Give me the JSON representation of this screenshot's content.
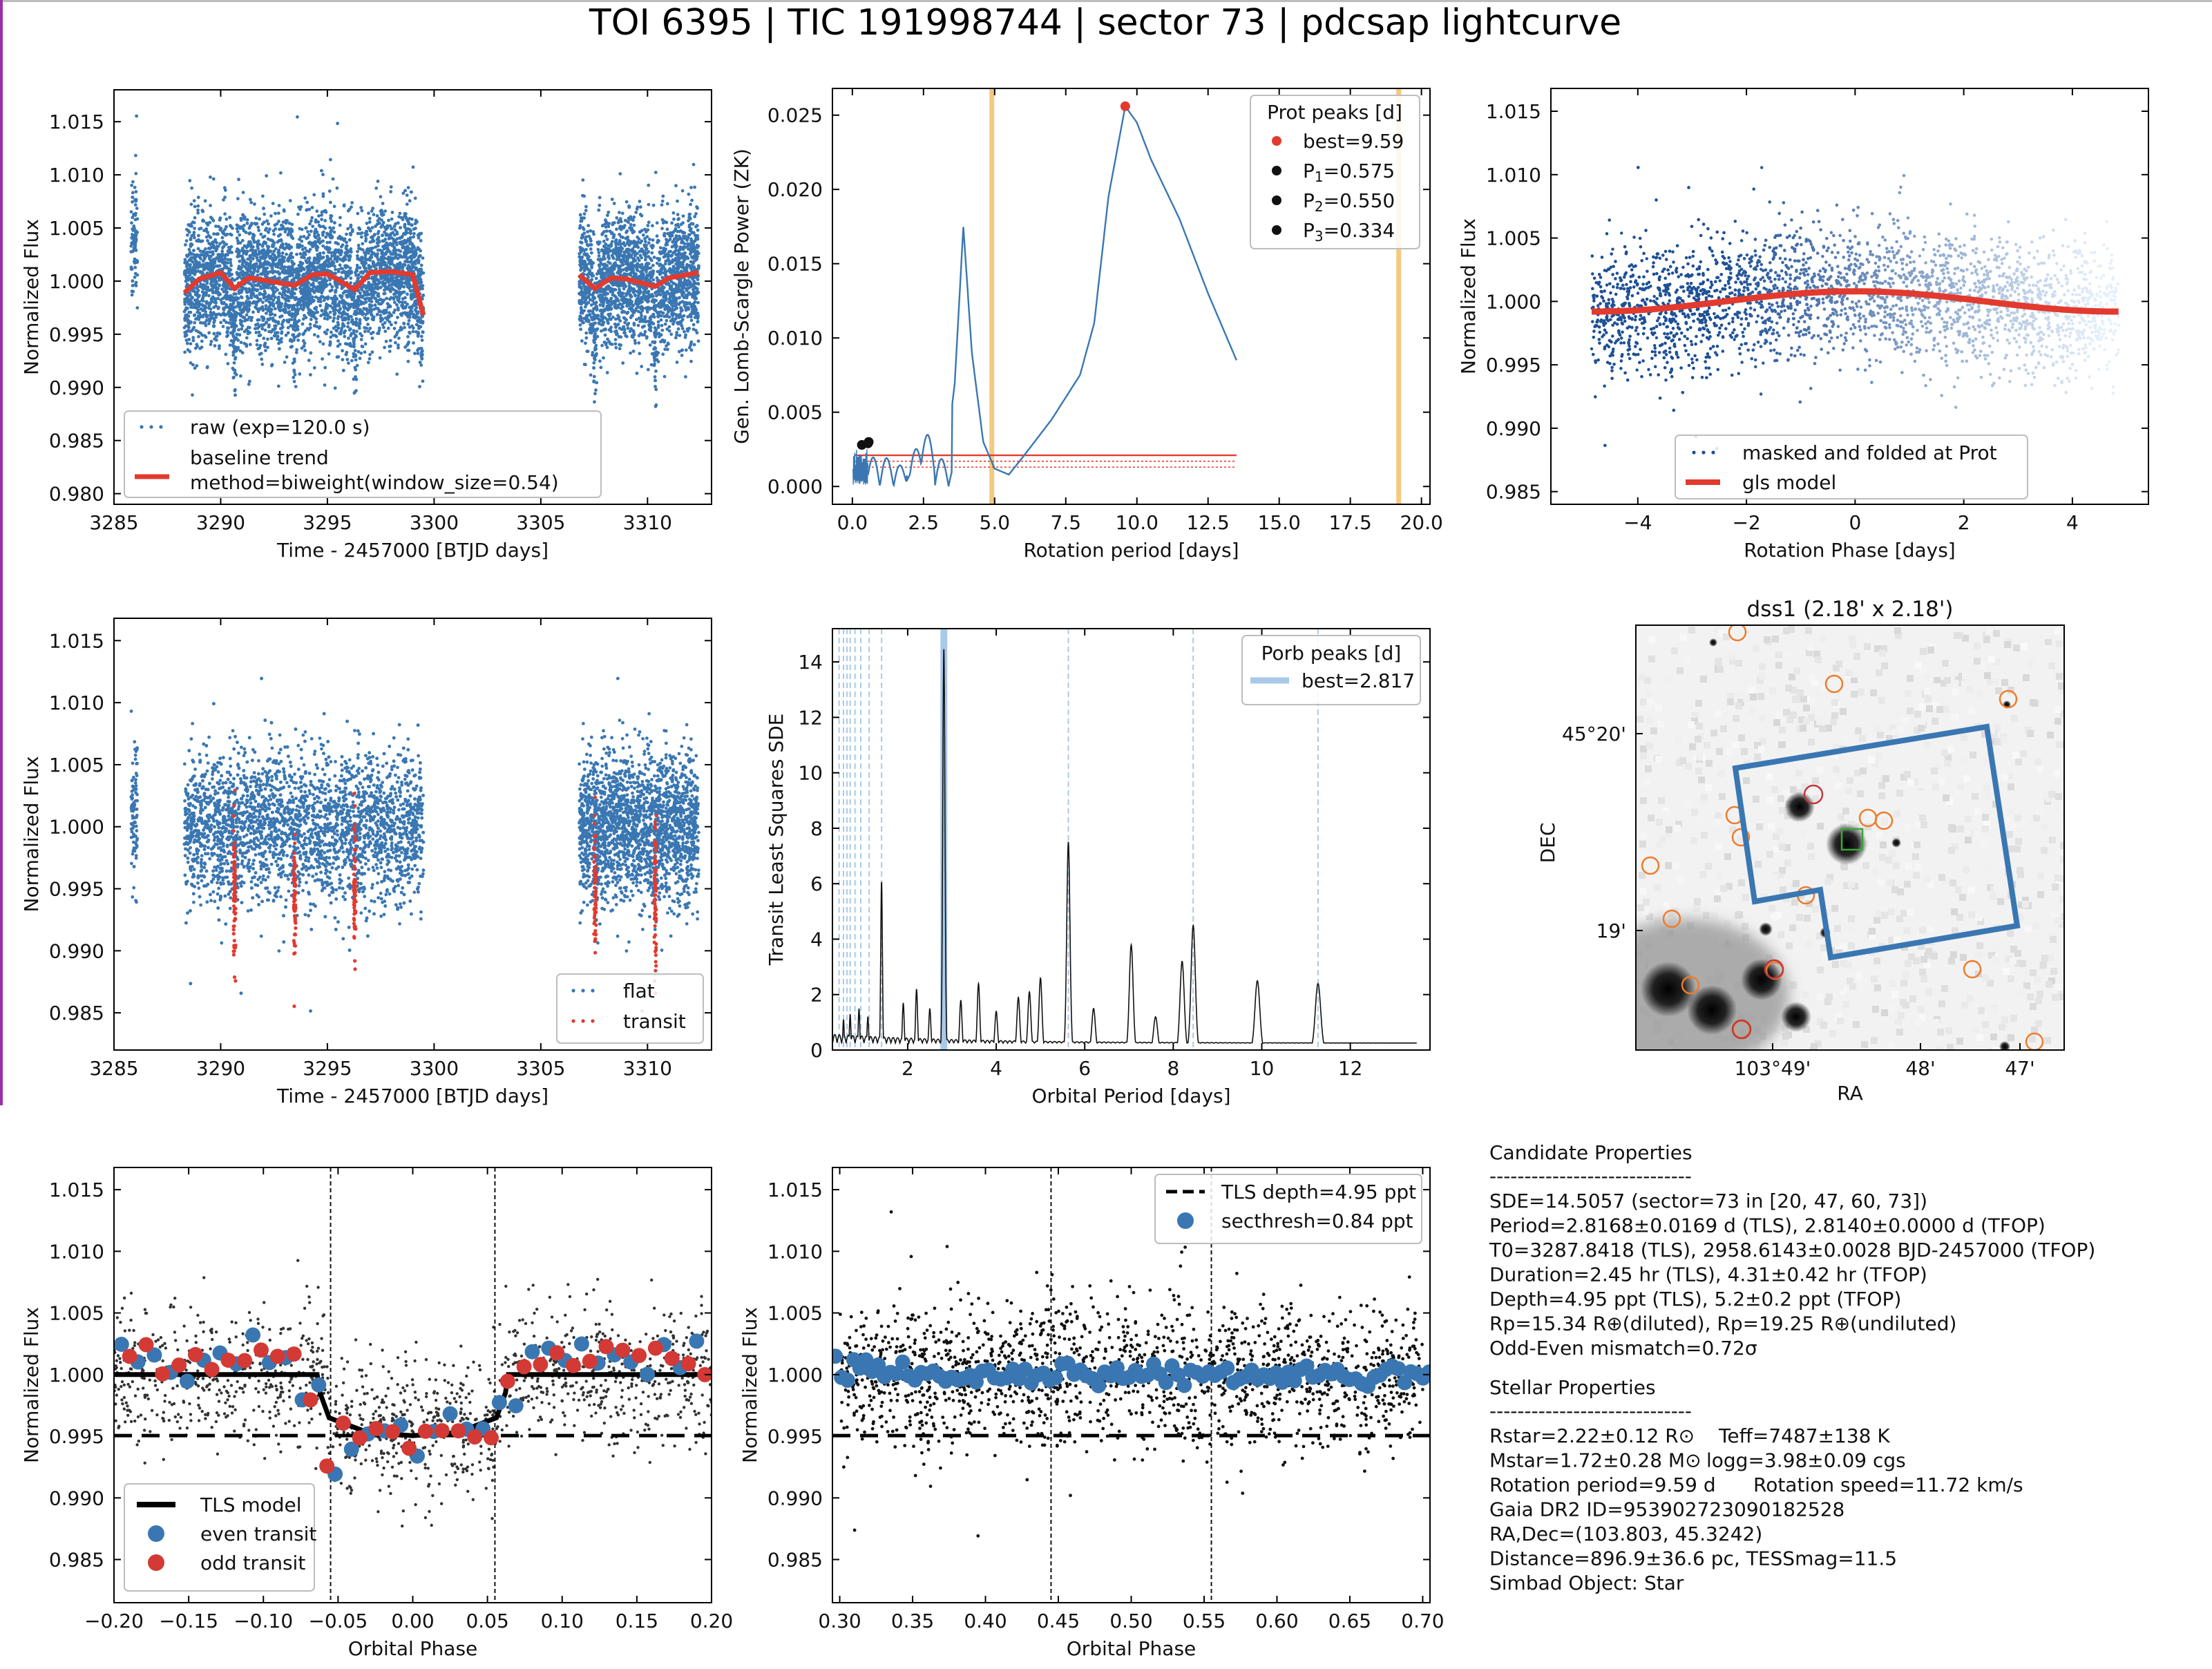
{
  "title": "TOI 6395 | TIC 191998744 | sector 73 | pdcsap lightcurve",
  "colors": {
    "blue": "#3a77b2",
    "red": "#e23a2e",
    "orange": "#f5c97e",
    "lightblue": "#a9c9e8",
    "dark": "#1a1a1a"
  },
  "chart_data": [
    {
      "id": "raw-lc",
      "type": "scatter",
      "xlabel": "Time - 2457000 [BTJD days]",
      "ylabel": "Normalized Flux",
      "xlim": [
        3285,
        3313
      ],
      "ylim": [
        0.979,
        1.018
      ],
      "xticks": [
        3285,
        3290,
        3295,
        3300,
        3305,
        3310
      ],
      "yticks": [
        0.98,
        0.985,
        0.99,
        0.995,
        1.0,
        1.005,
        1.01,
        1.015
      ],
      "segments": [
        [
          3285.8,
          3286.1
        ],
        [
          3288.3,
          3299.5
        ],
        [
          3306.8,
          3312.4
        ]
      ],
      "transit_times": [
        3290.65,
        3293.47,
        3296.28,
        3307.54,
        3310.36
      ],
      "series": [
        {
          "name": "raw (exp=120.0 s)",
          "kind": "points",
          "color": "#3a77b2",
          "scatter_ppt": 3.2
        },
        {
          "name": "baseline trend\nmethod=biweight(window_size=0.54)",
          "kind": "line",
          "color": "#e23a2e",
          "x": [
            3288.3,
            3289,
            3290,
            3290.65,
            3291.3,
            3292,
            3293.47,
            3294.3,
            3295,
            3296.28,
            3297,
            3298,
            3299,
            3299.5
          ],
          "y": [
            0.9989,
            1.0002,
            1.0008,
            0.9993,
            1.0003,
            1.0001,
            0.9996,
            1.0006,
            1.0007,
            0.9992,
            1.0008,
            1.0009,
            1.0006,
            0.9968
          ]
        },
        {
          "name": "baseline trend (sector end)",
          "kind": "line",
          "color": "#e23a2e",
          "x": [
            3306.8,
            3307.54,
            3308.3,
            3309,
            3310.36,
            3311,
            3312.4
          ],
          "y": [
            1.0006,
            0.9993,
            1.0003,
            1.0002,
            0.9995,
            1.0003,
            1.0008
          ]
        }
      ],
      "legend": "lower-left"
    },
    {
      "id": "gls-periodogram",
      "type": "line",
      "xlabel": "Rotation period [days]",
      "ylabel": "Gen. Lomb-Scargle Power (ZK)",
      "xlim": [
        -0.7,
        20.3
      ],
      "ylim": [
        -0.0012,
        0.0268
      ],
      "xticks": [
        0.0,
        2.5,
        5.0,
        7.5,
        10.0,
        12.5,
        15.0,
        17.5,
        20.0
      ],
      "yticks": [
        0.0,
        0.005,
        0.01,
        0.015,
        0.02,
        0.025
      ],
      "x": [
        0.55,
        0.9,
        1.2,
        1.6,
        2.0,
        2.4,
        2.8,
        3.2,
        3.6,
        3.9,
        4.2,
        4.6,
        5.0,
        5.5,
        6.0,
        7.0,
        8.0,
        8.5,
        9.0,
        9.59,
        10.0,
        10.5,
        11.5,
        12.5,
        13.5
      ],
      "y": [
        0.0005,
        0.0016,
        0.0019,
        0.0006,
        0.0028,
        0.0003,
        0.0034,
        0.0005,
        0.007,
        0.0175,
        0.009,
        0.003,
        0.0012,
        0.0008,
        0.002,
        0.0045,
        0.0075,
        0.011,
        0.0195,
        0.0256,
        0.0245,
        0.022,
        0.018,
        0.013,
        0.0085
      ],
      "thresholds": [
        0.0021,
        0.0017,
        0.0013
      ],
      "vlines": [
        4.9,
        19.2
      ],
      "peaks": [
        {
          "name": "best=9.59",
          "x": 9.59,
          "y": 0.0256,
          "color": "#e23a2e"
        },
        {
          "name": "P",
          "sub": "1",
          "val": "=0.575",
          "x": 0.575,
          "y": 0.003,
          "color": "#111111"
        },
        {
          "name": "P",
          "sub": "2",
          "val": "=0.550",
          "x": 0.55,
          "y": 0.0029,
          "color": "#111111"
        },
        {
          "name": "P",
          "sub": "3",
          "val": "=0.334",
          "x": 0.334,
          "y": 0.0028,
          "color": "#111111"
        }
      ],
      "legend_title": "Prot peaks [d]",
      "legend": "top-right"
    },
    {
      "id": "phase-folded-prot",
      "type": "scatter",
      "xlabel": "Rotation Phase [days]",
      "ylabel": "Normalized Flux",
      "xlim": [
        -5.0,
        5.0
      ],
      "ylim": [
        0.984,
        1.0168
      ],
      "xticks": [
        -4,
        -2,
        0,
        2,
        4
      ],
      "yticks": [
        0.985,
        0.99,
        0.995,
        1.0,
        1.005,
        1.01,
        1.015
      ],
      "series": [
        {
          "name": "masked and folded at Prot",
          "kind": "points",
          "color": "#1f4f99"
        },
        {
          "name": "gls model",
          "kind": "line",
          "color": "#e23a2e",
          "amp": 0.0008,
          "center": 0.0
        }
      ],
      "legend": "lower-right"
    },
    {
      "id": "flat-lc",
      "type": "scatter",
      "xlabel": "Time - 2457000 [BTJD days]",
      "ylabel": "Normalized Flux",
      "xlim": [
        3285,
        3313
      ],
      "ylim": [
        0.982,
        1.0168
      ],
      "xticks": [
        3285,
        3290,
        3295,
        3300,
        3305,
        3310
      ],
      "yticks": [
        0.985,
        0.99,
        0.995,
        1.0,
        1.005,
        1.01,
        1.015
      ],
      "series": [
        {
          "name": "flat",
          "kind": "points",
          "color": "#3a77b2"
        },
        {
          "name": "transit",
          "kind": "points",
          "color": "#e23a2e"
        }
      ],
      "legend": "lower-right"
    },
    {
      "id": "tls-periodogram",
      "type": "line",
      "xlabel": "Orbital Period [days]",
      "ylabel": "Transit Least Squares SDE",
      "xlim": [
        0.3,
        13.8
      ],
      "ylim": [
        0,
        15.2
      ],
      "xticks": [
        2,
        4,
        6,
        8,
        10,
        12
      ],
      "yticks": [
        0,
        2,
        4,
        6,
        8,
        10,
        12,
        14
      ],
      "peaks": [
        {
          "x": 0.55,
          "h": 1.1
        },
        {
          "x": 0.7,
          "h": 1.3
        },
        {
          "x": 0.9,
          "h": 1.5
        },
        {
          "x": 1.1,
          "h": 1.2
        },
        {
          "x": 1.41,
          "h": 6.1
        },
        {
          "x": 1.9,
          "h": 1.7
        },
        {
          "x": 2.2,
          "h": 2.2
        },
        {
          "x": 2.5,
          "h": 1.5
        },
        {
          "x": 2.817,
          "h": 14.51
        },
        {
          "x": 3.2,
          "h": 1.8
        },
        {
          "x": 3.6,
          "h": 2.4
        },
        {
          "x": 4.0,
          "h": 1.4
        },
        {
          "x": 4.5,
          "h": 1.9
        },
        {
          "x": 4.75,
          "h": 2.1
        },
        {
          "x": 5.0,
          "h": 2.6
        },
        {
          "x": 5.63,
          "h": 7.5
        },
        {
          "x": 6.2,
          "h": 1.5
        },
        {
          "x": 7.05,
          "h": 3.8
        },
        {
          "x": 7.6,
          "h": 1.2
        },
        {
          "x": 8.2,
          "h": 3.2
        },
        {
          "x": 8.45,
          "h": 4.5
        },
        {
          "x": 9.9,
          "h": 2.5
        },
        {
          "x": 11.27,
          "h": 2.4
        }
      ],
      "harmonics": [
        0.45,
        0.55,
        0.63,
        0.7,
        0.81,
        0.94,
        1.13,
        1.41,
        5.63,
        8.45,
        11.27
      ],
      "best": 2.817,
      "legend_title": "Porb peaks [d]",
      "legend_entry": "best=2.817",
      "legend": "top-right"
    },
    {
      "id": "tls-folded",
      "type": "scatter",
      "xlabel": "Orbital Phase",
      "ylabel": "Normalized Flux",
      "xlim": [
        -0.2,
        0.2
      ],
      "ylim": [
        0.9815,
        1.0168
      ],
      "xticks": [
        -0.2,
        -0.15,
        -0.1,
        -0.05,
        0.0,
        0.05,
        0.1,
        0.15,
        0.2
      ],
      "xtick_labels": [
        "−0.20",
        "−0.15",
        "−0.10",
        "−0.05",
        "0.00",
        "0.05",
        "0.10",
        "0.15",
        "0.20"
      ],
      "yticks": [
        0.985,
        0.99,
        0.995,
        1.0,
        1.005,
        1.01,
        1.015
      ],
      "depth": 0.99505,
      "t14_edges": [
        -0.055,
        0.055
      ],
      "model_ingress": [
        -0.064,
        -0.056,
        0.056,
        0.064
      ],
      "series": [
        {
          "name": "TLS model",
          "kind": "line",
          "color": "#000000"
        },
        {
          "name": "even transit",
          "kind": "points",
          "color": "#3a77b2"
        },
        {
          "name": "odd transit",
          "kind": "points",
          "color": "#d33a35"
        }
      ],
      "legend": "lower-left"
    },
    {
      "id": "secondary-eclipse",
      "type": "scatter",
      "xlabel": "Orbital Phase",
      "ylabel": "Normalized Flux",
      "xlim": [
        0.295,
        0.705
      ],
      "ylim": [
        0.9815,
        1.0168
      ],
      "xticks": [
        0.3,
        0.35,
        0.4,
        0.45,
        0.5,
        0.55,
        0.6,
        0.65,
        0.7
      ],
      "xtick_labels": [
        "0.30",
        "0.35",
        "0.40",
        "0.45",
        "0.50",
        "0.55",
        "0.60",
        "0.65",
        "0.70"
      ],
      "yticks": [
        0.985,
        0.99,
        0.995,
        1.0,
        1.005,
        1.01,
        1.015
      ],
      "depth": 0.99505,
      "edges": [
        0.445,
        0.555
      ],
      "series": [
        {
          "name": "TLS depth=4.95 ppt",
          "kind": "hline",
          "color": "#000000"
        },
        {
          "name": "secthresh=0.84 ppt",
          "kind": "points",
          "color": "#3a77b2"
        }
      ],
      "legend": "top-right"
    }
  ],
  "dss_panel": {
    "title": "dss1 (2.18' x 2.18')",
    "xlabel": "RA",
    "ylabel": "DEC",
    "xticks": [
      "103°49'",
      "48'",
      "47'"
    ],
    "yticks": [
      "45°20'",
      "19'"
    ]
  },
  "candidate": {
    "heading": "Candidate Properties",
    "rule": "-----------------------------",
    "lines": [
      "SDE=14.5057 (sector=73 in [20, 47, 60, 73])",
      "Period=2.8168±0.0169 d (TLS), 2.8140±0.0000 d (TFOP)",
      "T0=3287.8418 (TLS), 2958.6143±0.0028 BJD-2457000 (TFOP)",
      "Duration=2.45 hr (TLS), 4.31±0.42 hr (TFOP)",
      "Depth=4.95 ppt (TLS), 5.2±0.2 ppt (TFOP)",
      "Rp=15.34 R⊕(diluted), Rp=19.25 R⊕(undiluted)",
      "Odd-Even mismatch=0.72σ"
    ]
  },
  "stellar": {
    "heading": "Stellar Properties",
    "rule": "-----------------------------",
    "lines": [
      [
        "Rstar=2.22±0.12 R⊙",
        "Teff=7487±138 K"
      ],
      [
        "Mstar=1.72±0.28 M⊙",
        "logg=3.98±0.09 cgs"
      ],
      [
        "Rotation period=9.59 d",
        "Rotation speed=11.72 km/s"
      ],
      [
        "Gaia DR2 ID=953902723090182528",
        ""
      ],
      [
        "RA,Dec=(103.803, 45.3242)",
        ""
      ],
      [
        "Distance=896.9±36.6 pc, TESSmag=11.5",
        ""
      ],
      [
        "Simbad Object: Star",
        ""
      ]
    ]
  }
}
